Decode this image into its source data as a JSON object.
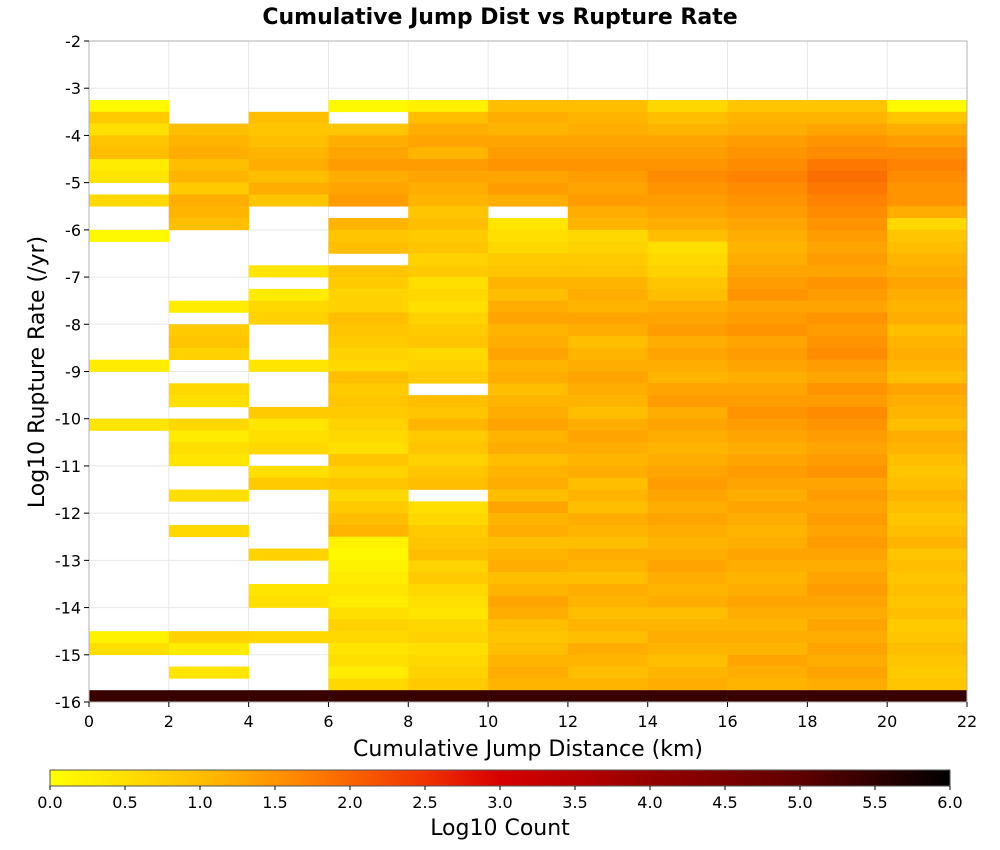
{
  "chart_data": {
    "type": "heatmap",
    "title": "Cumulative Jump Dist vs Rupture Rate",
    "xlabel": "Cumulative Jump Distance (km)",
    "ylabel": "Log10 Rupture Rate (/yr)",
    "xlim": [
      0,
      22
    ],
    "ylim": [
      -16,
      -2
    ],
    "x_ticks": [
      "0",
      "2",
      "4",
      "6",
      "8",
      "10",
      "12",
      "14",
      "16",
      "18",
      "20",
      "22"
    ],
    "y_ticks": [
      "-2",
      "-3",
      "-4",
      "-5",
      "-6",
      "-7",
      "-8",
      "-9",
      "-10",
      "-11",
      "-12",
      "-13",
      "-14",
      "-15",
      "-16"
    ],
    "x_bin_edges": [
      0,
      2,
      4,
      6,
      8,
      10,
      12,
      14,
      16,
      18,
      20,
      22
    ],
    "y_bin_width": 0.25,
    "y_bin_first_lower_edge": -16,
    "bottom_row_value": 5.4,
    "rows_top_to_bottom_start_y": -3.25,
    "columns_log10_count_top_to_bottom": [
      [
        0.1,
        0.8,
        0.5,
        0.9,
        1.0,
        0.3,
        0.4,
        null,
        0.6,
        null,
        null,
        0.1,
        null,
        null,
        null,
        null,
        null,
        null,
        null,
        null,
        null,
        null,
        0.3,
        null,
        null,
        null,
        null,
        0.4,
        null,
        null,
        null,
        null,
        null,
        null,
        null,
        null,
        null,
        null,
        null,
        null,
        null,
        null,
        null,
        null,
        null,
        0.2,
        0.5,
        null,
        null,
        null,
        null
      ],
      [
        null,
        null,
        1.0,
        1.1,
        1.2,
        1.0,
        1.1,
        0.8,
        1.2,
        1.1,
        1.0,
        null,
        null,
        null,
        null,
        null,
        null,
        0.3,
        null,
        0.8,
        0.9,
        0.7,
        null,
        null,
        0.6,
        0.5,
        null,
        0.6,
        0.3,
        0.5,
        0.4,
        null,
        null,
        0.5,
        null,
        null,
        0.6,
        null,
        null,
        null,
        null,
        null,
        null,
        null,
        null,
        0.7,
        0.3,
        null,
        0.4,
        null,
        null
      ],
      [
        null,
        1.0,
        0.9,
        1.0,
        1.1,
        1.2,
        1.0,
        1.2,
        0.9,
        null,
        null,
        null,
        null,
        null,
        0.4,
        null,
        0.3,
        0.6,
        0.7,
        null,
        null,
        null,
        0.4,
        null,
        null,
        null,
        0.8,
        0.4,
        0.5,
        0.6,
        null,
        0.5,
        0.8,
        null,
        null,
        null,
        null,
        null,
        0.7,
        null,
        null,
        0.4,
        0.5,
        null,
        null,
        0.6,
        null,
        null,
        null,
        null,
        null
      ],
      [
        0.1,
        null,
        0.9,
        1.2,
        1.3,
        1.4,
        1.2,
        1.3,
        1.4,
        null,
        1.1,
        0.9,
        1.0,
        null,
        0.9,
        0.8,
        0.7,
        0.7,
        1.0,
        0.9,
        0.8,
        0.7,
        0.6,
        1.0,
        0.8,
        0.9,
        0.8,
        0.7,
        0.6,
        0.5,
        0.9,
        0.7,
        0.9,
        0.6,
        0.8,
        1.0,
        1.1,
        0.2,
        0.1,
        0.2,
        0.3,
        0.4,
        0.3,
        0.5,
        0.7,
        0.6,
        0.4,
        0.5,
        0.3,
        0.6,
        null
      ],
      [
        0.2,
        1.0,
        1.2,
        1.3,
        1.1,
        1.4,
        1.3,
        1.2,
        1.1,
        0.9,
        1.0,
        0.8,
        0.9,
        0.7,
        0.8,
        0.5,
        0.6,
        0.5,
        0.7,
        0.8,
        0.9,
        0.6,
        0.7,
        0.8,
        null,
        1.0,
        0.9,
        1.1,
        0.8,
        0.9,
        0.7,
        0.9,
        1.0,
        null,
        0.5,
        0.6,
        0.8,
        0.9,
        1.0,
        0.7,
        0.8,
        0.6,
        0.5,
        0.4,
        0.6,
        0.7,
        0.5,
        0.6,
        0.7,
        0.8,
        null
      ],
      [
        1.0,
        1.2,
        1.1,
        1.3,
        1.4,
        1.5,
        1.3,
        1.4,
        1.2,
        null,
        0.4,
        0.5,
        0.6,
        0.8,
        0.9,
        1.1,
        1.0,
        1.2,
        1.3,
        1.1,
        1.2,
        1.3,
        1.1,
        1.2,
        1.0,
        1.1,
        1.2,
        1.3,
        1.1,
        1.2,
        1.0,
        1.1,
        1.2,
        1.0,
        1.3,
        1.1,
        1.2,
        1.0,
        1.1,
        1.2,
        1.0,
        1.1,
        1.3,
        1.2,
        1.0,
        0.9,
        1.0,
        1.1,
        1.2,
        1.1,
        null
      ],
      [
        1.0,
        1.1,
        1.2,
        1.3,
        1.4,
        1.5,
        1.4,
        1.3,
        1.4,
        1.2,
        1.1,
        0.6,
        0.7,
        0.8,
        0.9,
        1.1,
        1.2,
        1.1,
        1.3,
        1.2,
        1.0,
        1.1,
        1.2,
        1.3,
        1.2,
        1.1,
        1.0,
        1.2,
        1.3,
        1.2,
        1.1,
        1.2,
        1.0,
        1.1,
        1.0,
        1.2,
        1.1,
        1.0,
        1.2,
        1.1,
        1.0,
        1.2,
        1.1,
        1.0,
        1.1,
        1.0,
        1.2,
        1.1,
        1.0,
        1.1,
        null
      ],
      [
        0.6,
        1.0,
        1.1,
        1.3,
        1.4,
        1.5,
        1.6,
        1.5,
        1.4,
        1.3,
        1.2,
        1.0,
        0.5,
        0.6,
        0.7,
        0.9,
        1.0,
        1.2,
        1.3,
        1.4,
        1.2,
        1.3,
        1.2,
        1.1,
        1.3,
        1.4,
        1.2,
        1.3,
        1.2,
        1.1,
        1.2,
        1.3,
        1.4,
        1.3,
        1.2,
        1.3,
        1.2,
        1.1,
        1.2,
        1.3,
        1.2,
        1.1,
        1.2,
        1.0,
        1.1,
        1.2,
        1.1,
        1.0,
        1.1,
        1.2,
        null
      ],
      [
        0.9,
        1.1,
        1.2,
        1.4,
        1.5,
        1.6,
        1.7,
        1.6,
        1.5,
        1.4,
        1.3,
        1.2,
        1.1,
        1.2,
        1.3,
        1.4,
        1.5,
        1.3,
        1.4,
        1.5,
        1.3,
        1.4,
        1.3,
        1.2,
        1.3,
        1.4,
        1.5,
        1.4,
        1.3,
        1.2,
        1.3,
        1.4,
        1.3,
        1.2,
        1.3,
        1.2,
        1.1,
        1.2,
        1.3,
        1.2,
        1.1,
        1.2,
        1.3,
        1.2,
        1.1,
        1.2,
        1.1,
        1.3,
        1.2,
        1.1,
        null
      ],
      [
        0.9,
        1.1,
        1.3,
        1.5,
        1.6,
        1.8,
        1.9,
        1.8,
        1.7,
        1.6,
        1.5,
        1.4,
        1.3,
        1.4,
        1.3,
        1.5,
        1.4,
        1.3,
        1.5,
        1.4,
        1.5,
        1.6,
        1.4,
        1.3,
        1.5,
        1.4,
        1.6,
        1.5,
        1.4,
        1.3,
        1.4,
        1.5,
        1.3,
        1.4,
        1.3,
        1.4,
        1.3,
        1.4,
        1.3,
        1.2,
        1.3,
        1.4,
        1.3,
        1.2,
        1.3,
        1.2,
        1.3,
        1.2,
        1.3,
        1.2,
        null
      ],
      [
        0.1,
        0.9,
        1.2,
        1.4,
        1.6,
        1.7,
        1.6,
        1.5,
        1.5,
        1.2,
        0.6,
        0.9,
        1.0,
        1.1,
        1.2,
        1.3,
        1.2,
        1.1,
        1.2,
        1.0,
        1.1,
        1.2,
        1.1,
        1.0,
        1.3,
        1.2,
        1.1,
        1.0,
        1.2,
        1.1,
        1.0,
        0.9,
        1.0,
        1.1,
        1.0,
        0.9,
        1.0,
        1.1,
        0.9,
        1.0,
        0.9,
        1.0,
        0.9,
        1.0,
        0.8,
        0.9,
        1.0,
        0.9,
        0.8,
        0.9,
        null
      ]
    ],
    "colorbar": {
      "label": "Log10 Count",
      "min": 0.0,
      "max": 6.0,
      "ticks": [
        "0.0",
        "0.5",
        "1.0",
        "1.5",
        "2.0",
        "2.5",
        "3.0",
        "3.5",
        "4.0",
        "4.5",
        "5.0",
        "5.5",
        "6.0"
      ],
      "colors": [
        "#ffff00",
        "#ffa500",
        "#ff0000",
        "#000000"
      ]
    },
    "grid": true
  }
}
